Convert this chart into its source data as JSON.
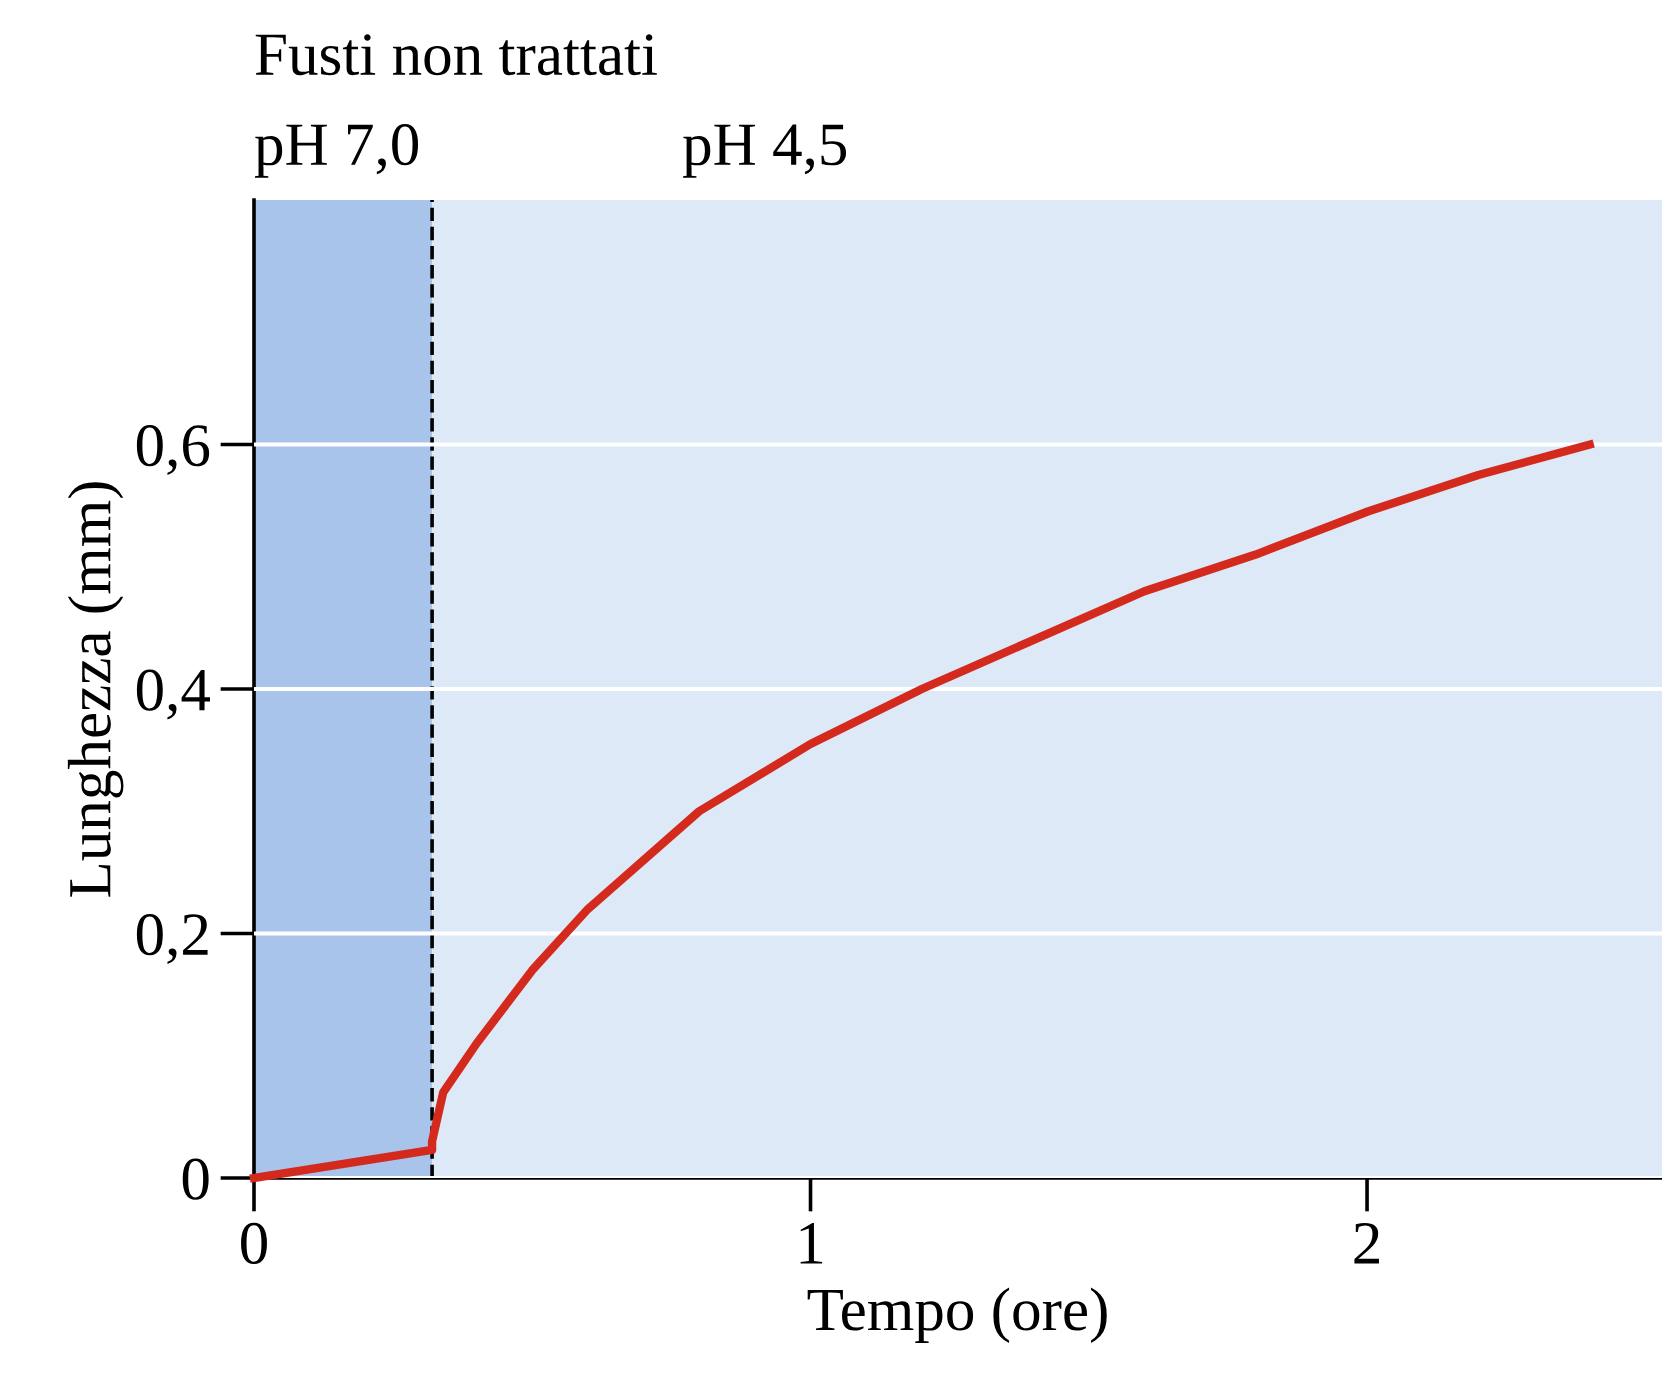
{
  "chart_data": {
    "type": "line",
    "title": "Fusti non trattati",
    "xlabel": "Tempo (ore)",
    "ylabel": "Lunghezza (mm)",
    "series": [
      {
        "color": "#d42a1e",
        "x": [
          0,
          0.32,
          0.32,
          0.34,
          0.4,
          0.5,
          0.6,
          0.8,
          1.0,
          1.2,
          1.4,
          1.6,
          1.8,
          2.0,
          2.2,
          2.4
        ],
        "values": [
          0,
          0.023,
          0.03,
          0.07,
          0.11,
          0.17,
          0.22,
          0.3,
          0.355,
          0.4,
          0.44,
          0.48,
          0.51,
          0.545,
          0.575,
          0.6
        ]
      }
    ],
    "xlim": [
      0,
      2.53
    ],
    "ylim": [
      0,
      0.8
    ],
    "xticks": [
      0,
      1,
      2
    ],
    "yticks": [
      0,
      {
        "value": 0.2,
        "label": "0,2"
      },
      {
        "value": 0.4,
        "label": "0,4"
      },
      {
        "value": 0.6,
        "label": "0,6"
      }
    ],
    "bands": [
      {
        "axis": "x",
        "from": 0,
        "to": 0.32,
        "label": "pH 7,0",
        "color": "#a9c4ea"
      },
      {
        "axis": "x",
        "from": 0.32,
        "to": 2.53,
        "label": "pH 4,5",
        "color": "#dde9f7"
      }
    ],
    "ref_lines": [
      {
        "axis": "x",
        "value": 0.32,
        "line_style": "dashed",
        "color": "#000000"
      }
    ],
    "grid": "y",
    "marker": "none",
    "line_style": "solid"
  }
}
